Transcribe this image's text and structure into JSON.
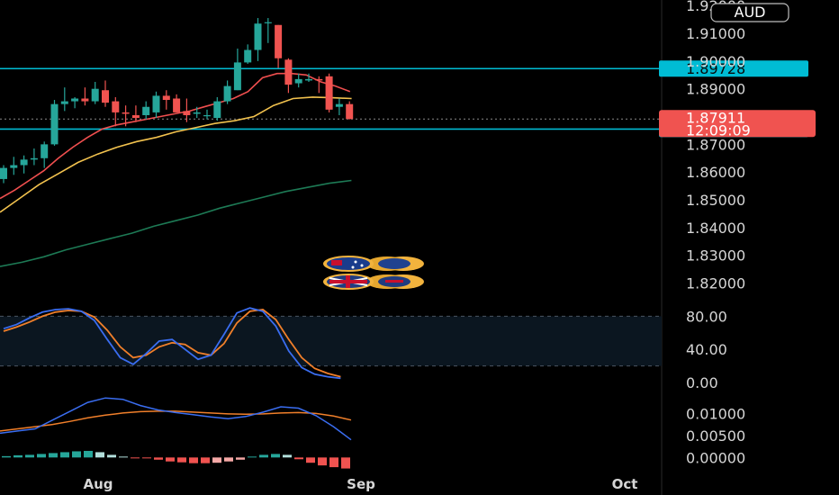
{
  "currency": "AUD",
  "colors": {
    "bull": "#26a69a",
    "bear": "#f05350",
    "level": "#00bcd4",
    "ema_fast": "#f04f4f",
    "ema_mid": "#f2c24e",
    "ema_slow": "#1d7a55",
    "stoch_k": "#3a6df0",
    "stoch_d": "#f07f2a",
    "macd_line": "#3a6df0",
    "signal_line": "#f07f2a",
    "hist_pos": "#26a69a",
    "hist_pos_weak": "#b2dfdb",
    "hist_neg": "#f05350",
    "hist_neg_weak": "#f7a9a7"
  },
  "icons": [
    "aud-flag-icon",
    "gbp-flag-icon"
  ],
  "chart_data": [
    {
      "type": "candlestick",
      "ylim": [
        1.815,
        1.922
      ],
      "yticks": [
        "1.91000",
        "1.90000",
        "1.89000",
        "1.87000",
        "1.86000",
        "1.85000",
        "1.84000",
        "1.83000",
        "1.82000"
      ],
      "top_cut_label": "1.92000",
      "x_labels": [
        "Aug",
        "Sep",
        "Oct"
      ],
      "levels": [
        {
          "value": 1.89728,
          "label": "1.89728"
        },
        {
          "value": 1.8755,
          "label": "1.87550"
        }
      ],
      "current": {
        "value": 1.87911,
        "label": "1.87911",
        "countdown": "12:09:09"
      },
      "candles": [
        {
          "o": 1.8575,
          "h": 1.8625,
          "l": 1.856,
          "c": 1.8615
        },
        {
          "o": 1.8615,
          "h": 1.8655,
          "l": 1.859,
          "c": 1.8625
        },
        {
          "o": 1.8625,
          "h": 1.866,
          "l": 1.8595,
          "c": 1.8645
        },
        {
          "o": 1.8645,
          "h": 1.8685,
          "l": 1.8625,
          "c": 1.865
        },
        {
          "o": 1.865,
          "h": 1.871,
          "l": 1.8615,
          "c": 1.87
        },
        {
          "o": 1.87,
          "h": 1.886,
          "l": 1.8695,
          "c": 1.8845
        },
        {
          "o": 1.8845,
          "h": 1.8905,
          "l": 1.882,
          "c": 1.8855
        },
        {
          "o": 1.8855,
          "h": 1.887,
          "l": 1.883,
          "c": 1.8865
        },
        {
          "o": 1.8865,
          "h": 1.8905,
          "l": 1.884,
          "c": 1.8855
        },
        {
          "o": 1.8855,
          "h": 1.8925,
          "l": 1.8845,
          "c": 1.89
        },
        {
          "o": 1.8895,
          "h": 1.893,
          "l": 1.8835,
          "c": 1.885
        },
        {
          "o": 1.8855,
          "h": 1.887,
          "l": 1.8765,
          "c": 1.8815
        },
        {
          "o": 1.8815,
          "h": 1.884,
          "l": 1.8765,
          "c": 1.881
        },
        {
          "o": 1.8805,
          "h": 1.884,
          "l": 1.878,
          "c": 1.8795
        },
        {
          "o": 1.8805,
          "h": 1.8855,
          "l": 1.879,
          "c": 1.8835
        },
        {
          "o": 1.8815,
          "h": 1.889,
          "l": 1.8795,
          "c": 1.8875
        },
        {
          "o": 1.8875,
          "h": 1.8895,
          "l": 1.8825,
          "c": 1.886
        },
        {
          "o": 1.8865,
          "h": 1.888,
          "l": 1.8815,
          "c": 1.8815
        },
        {
          "o": 1.882,
          "h": 1.8865,
          "l": 1.878,
          "c": 1.8805
        },
        {
          "o": 1.881,
          "h": 1.8835,
          "l": 1.8795,
          "c": 1.8815
        },
        {
          "o": 1.8805,
          "h": 1.8825,
          "l": 1.879,
          "c": 1.8805
        },
        {
          "o": 1.8795,
          "h": 1.887,
          "l": 1.8785,
          "c": 1.8855
        },
        {
          "o": 1.8855,
          "h": 1.893,
          "l": 1.8845,
          "c": 1.891
        },
        {
          "o": 1.8895,
          "h": 1.9045,
          "l": 1.8895,
          "c": 1.8995
        },
        {
          "o": 1.8995,
          "h": 1.906,
          "l": 1.899,
          "c": 1.904
        },
        {
          "o": 1.904,
          "h": 1.9155,
          "l": 1.9,
          "c": 1.9135
        },
        {
          "o": 1.914,
          "h": 1.9155,
          "l": 1.9065,
          "c": 1.914
        },
        {
          "o": 1.913,
          "h": 1.913,
          "l": 1.8975,
          "c": 1.901
        },
        {
          "o": 1.9005,
          "h": 1.901,
          "l": 1.8885,
          "c": 1.8915
        },
        {
          "o": 1.892,
          "h": 1.8955,
          "l": 1.8905,
          "c": 1.8935
        },
        {
          "o": 1.893,
          "h": 1.8955,
          "l": 1.8925,
          "c": 1.8935
        },
        {
          "o": 1.8935,
          "h": 1.8945,
          "l": 1.8885,
          "c": 1.893
        },
        {
          "o": 1.8945,
          "h": 1.8955,
          "l": 1.8815,
          "c": 1.8825
        },
        {
          "o": 1.8835,
          "h": 1.8865,
          "l": 1.8805,
          "c": 1.8845
        },
        {
          "o": 1.8845,
          "h": 1.8855,
          "l": 1.879,
          "c": 1.8791
        }
      ],
      "ema_fast": [
        1.8505,
        1.8535,
        1.857,
        1.8605,
        1.865,
        1.869,
        1.8725,
        1.8755,
        1.877,
        1.878,
        1.879,
        1.88,
        1.881,
        1.882,
        1.8835,
        1.885,
        1.8865,
        1.889,
        1.894,
        1.8955,
        1.8955,
        1.895,
        1.8925,
        1.891,
        1.889
      ],
      "ema_mid": [
        1.8455,
        1.8505,
        1.8555,
        1.8595,
        1.8635,
        1.8665,
        1.869,
        1.871,
        1.8725,
        1.8745,
        1.876,
        1.8775,
        1.8785,
        1.88,
        1.884,
        1.8865,
        1.887,
        1.8868,
        1.8865
      ],
      "ema_slow": [
        1.826,
        1.8275,
        1.8295,
        1.832,
        1.834,
        1.836,
        1.838,
        1.8405,
        1.8425,
        1.8445,
        1.847,
        1.849,
        1.851,
        1.853,
        1.8545,
        1.856,
        1.857
      ]
    },
    {
      "type": "line",
      "name": "stochastic",
      "ylim": [
        0,
        100
      ],
      "yticks": [
        "80.00",
        "40.00",
        "0.00"
      ],
      "band": [
        20,
        80
      ],
      "k": [
        65,
        70,
        78,
        85,
        88,
        89,
        86,
        75,
        52,
        30,
        22,
        35,
        50,
        52,
        40,
        28,
        33,
        58,
        84,
        90,
        86,
        68,
        38,
        18,
        10,
        7,
        5
      ],
      "d": [
        62,
        67,
        73,
        80,
        85,
        87,
        86,
        79,
        63,
        43,
        30,
        33,
        43,
        48,
        46,
        36,
        33,
        47,
        72,
        86,
        88,
        76,
        52,
        30,
        17,
        11,
        7
      ]
    },
    {
      "type": "bar",
      "name": "macd",
      "ylim": [
        -0.003,
        0.016
      ],
      "yticks": [
        "0.01000",
        "0.00500",
        "0.00000"
      ],
      "macd": [
        0.0055,
        0.006,
        0.0065,
        0.0085,
        0.0105,
        0.0125,
        0.0135,
        0.0132,
        0.0118,
        0.0108,
        0.0102,
        0.0097,
        0.0092,
        0.0088,
        0.0093,
        0.0103,
        0.0115,
        0.0112,
        0.0095,
        0.007,
        0.004
      ],
      "signal": [
        0.006,
        0.0065,
        0.007,
        0.0075,
        0.0082,
        0.009,
        0.0096,
        0.0101,
        0.0104,
        0.0105,
        0.0105,
        0.0103,
        0.0101,
        0.0099,
        0.0098,
        0.0099,
        0.0101,
        0.0102,
        0.01,
        0.0094,
        0.0085
      ],
      "histogram": [
        0.0003,
        0.0005,
        0.0006,
        0.0008,
        0.001,
        0.0012,
        0.0014,
        0.0015,
        0.0012,
        0.0006,
        0.0002,
        -0.0001,
        -0.0002,
        -0.0005,
        -0.0009,
        -0.0011,
        -0.0013,
        -0.0013,
        -0.0012,
        -0.0009,
        -0.0005,
        0.0002,
        0.0006,
        0.0008,
        0.0006,
        -0.0004,
        -0.0012,
        -0.0018,
        -0.0022,
        -0.0025
      ]
    }
  ]
}
